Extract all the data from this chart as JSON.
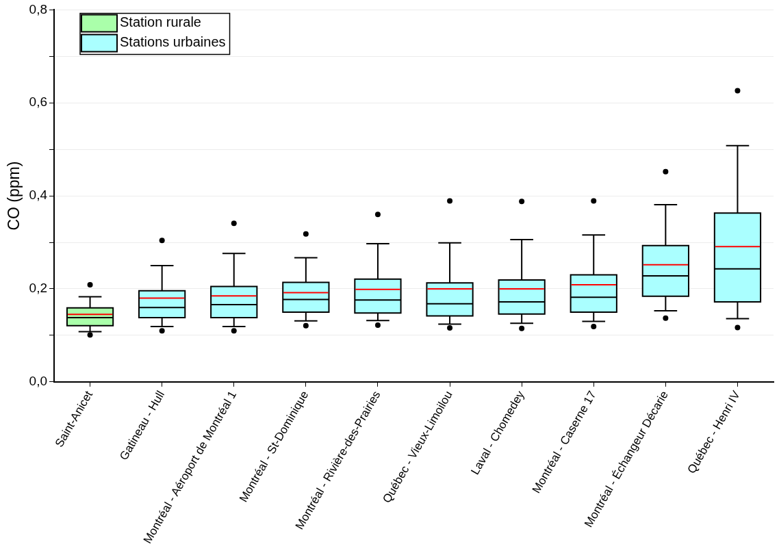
{
  "chart_data": {
    "type": "box",
    "ylabel": "CO (ppm)",
    "categories": [
      "Saint-Anicet",
      "Gatineau - Hull",
      "Montréal - Aéroport de Montréal 1",
      "Montréal - St-Dominique",
      "Montréal - Rivière-des-Prairies",
      "Québec - Vieux-Limoilou",
      "Laval - Chomedey",
      "Montréal - Caserne 17",
      "Montréal - Échangeur Décarie",
      "Québec - Henri IV"
    ],
    "series": [
      {
        "name": "Station rurale",
        "color": "#aaffaa",
        "boxes": [
          {
            "low": 0.108,
            "q1": 0.121,
            "median": 0.138,
            "q3": 0.159,
            "high": 0.183,
            "mean": 0.145,
            "outliers": [
              0.209,
              0.101
            ]
          },
          null,
          null,
          null,
          null,
          null,
          null,
          null,
          null,
          null
        ]
      },
      {
        "name": "Stations urbaines",
        "color": "#aaffff",
        "boxes": [
          null,
          {
            "low": 0.119,
            "q1": 0.138,
            "median": 0.16,
            "q3": 0.196,
            "high": 0.25,
            "mean": 0.18,
            "outliers": [
              0.304,
              0.11
            ]
          },
          {
            "low": 0.119,
            "q1": 0.138,
            "median": 0.166,
            "q3": 0.205,
            "high": 0.276,
            "mean": 0.185,
            "outliers": [
              0.341,
              0.11
            ]
          },
          {
            "low": 0.131,
            "q1": 0.15,
            "median": 0.177,
            "q3": 0.214,
            "high": 0.267,
            "mean": 0.192,
            "outliers": [
              0.318,
              0.121
            ]
          },
          {
            "low": 0.132,
            "q1": 0.148,
            "median": 0.176,
            "q3": 0.221,
            "high": 0.297,
            "mean": 0.199,
            "outliers": [
              0.36,
              0.122
            ]
          },
          {
            "low": 0.124,
            "q1": 0.142,
            "median": 0.168,
            "q3": 0.213,
            "high": 0.299,
            "mean": 0.2,
            "outliers": [
              0.389,
              0.116
            ]
          },
          {
            "low": 0.126,
            "q1": 0.146,
            "median": 0.172,
            "q3": 0.219,
            "high": 0.306,
            "mean": 0.2,
            "outliers": [
              0.388,
              0.115
            ]
          },
          {
            "low": 0.13,
            "q1": 0.15,
            "median": 0.182,
            "q3": 0.23,
            "high": 0.316,
            "mean": 0.209,
            "outliers": [
              0.389,
              0.119
            ]
          },
          {
            "low": 0.153,
            "q1": 0.184,
            "median": 0.228,
            "q3": 0.293,
            "high": 0.381,
            "mean": 0.252,
            "outliers": [
              0.452,
              0.137
            ]
          },
          {
            "low": 0.136,
            "q1": 0.172,
            "median": 0.243,
            "q3": 0.363,
            "high": 0.508,
            "mean": 0.291,
            "outliers": [
              0.626,
              0.117
            ]
          }
        ]
      }
    ],
    "ylim": [
      0,
      0.8
    ],
    "yticks": [
      {
        "value": 0,
        "label": "0,0"
      },
      {
        "value": 0.1,
        "label": null
      },
      {
        "value": 0.2,
        "label": "0,2"
      },
      {
        "value": 0.3,
        "label": null
      },
      {
        "value": 0.4,
        "label": "0,4"
      },
      {
        "value": 0.5,
        "label": null
      },
      {
        "value": 0.6,
        "label": "0,6"
      },
      {
        "value": 0.7,
        "label": null
      },
      {
        "value": 0.8,
        "label": "0,8"
      }
    ],
    "grid": "y",
    "legend": "top left"
  }
}
